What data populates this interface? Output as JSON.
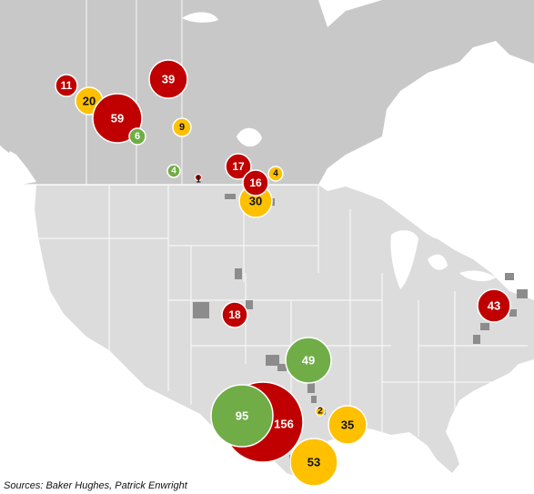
{
  "colors": {
    "red": "#c00000",
    "yellow": "#ffc000",
    "green": "#70ad47",
    "canada_land": "#c8c8c8",
    "us_land": "#dcdcdc",
    "water": "#ffffff",
    "border": "#ffffff",
    "play_areas": "#8c8c8c"
  },
  "bubbles": [
    {
      "id": "b11",
      "value": "11",
      "color": "red"
    },
    {
      "id": "b39",
      "value": "39",
      "color": "red"
    },
    {
      "id": "b20",
      "value": "20",
      "color": "yellow"
    },
    {
      "id": "b59",
      "value": "59",
      "color": "red"
    },
    {
      "id": "b6",
      "value": "6",
      "color": "green"
    },
    {
      "id": "b9",
      "value": "9",
      "color": "yellow"
    },
    {
      "id": "b4a",
      "value": "4",
      "color": "green"
    },
    {
      "id": "b1",
      "value": "1",
      "color": "red"
    },
    {
      "id": "b17",
      "value": "17",
      "color": "red"
    },
    {
      "id": "b16",
      "value": "16",
      "color": "red"
    },
    {
      "id": "b4b",
      "value": "4",
      "color": "yellow"
    },
    {
      "id": "b30",
      "value": "30",
      "color": "yellow"
    },
    {
      "id": "b18",
      "value": "18",
      "color": "red"
    },
    {
      "id": "b43",
      "value": "43",
      "color": "red"
    },
    {
      "id": "b49",
      "value": "49",
      "color": "green"
    },
    {
      "id": "b156",
      "value": "156",
      "color": "red"
    },
    {
      "id": "b95",
      "value": "95",
      "color": "green"
    },
    {
      "id": "b2",
      "value": "2",
      "color": "yellow"
    },
    {
      "id": "b35",
      "value": "35",
      "color": "yellow"
    },
    {
      "id": "b53",
      "value": "53",
      "color": "yellow"
    }
  ],
  "source": "Sources: Baker Hughes, Patrick Enwright"
}
